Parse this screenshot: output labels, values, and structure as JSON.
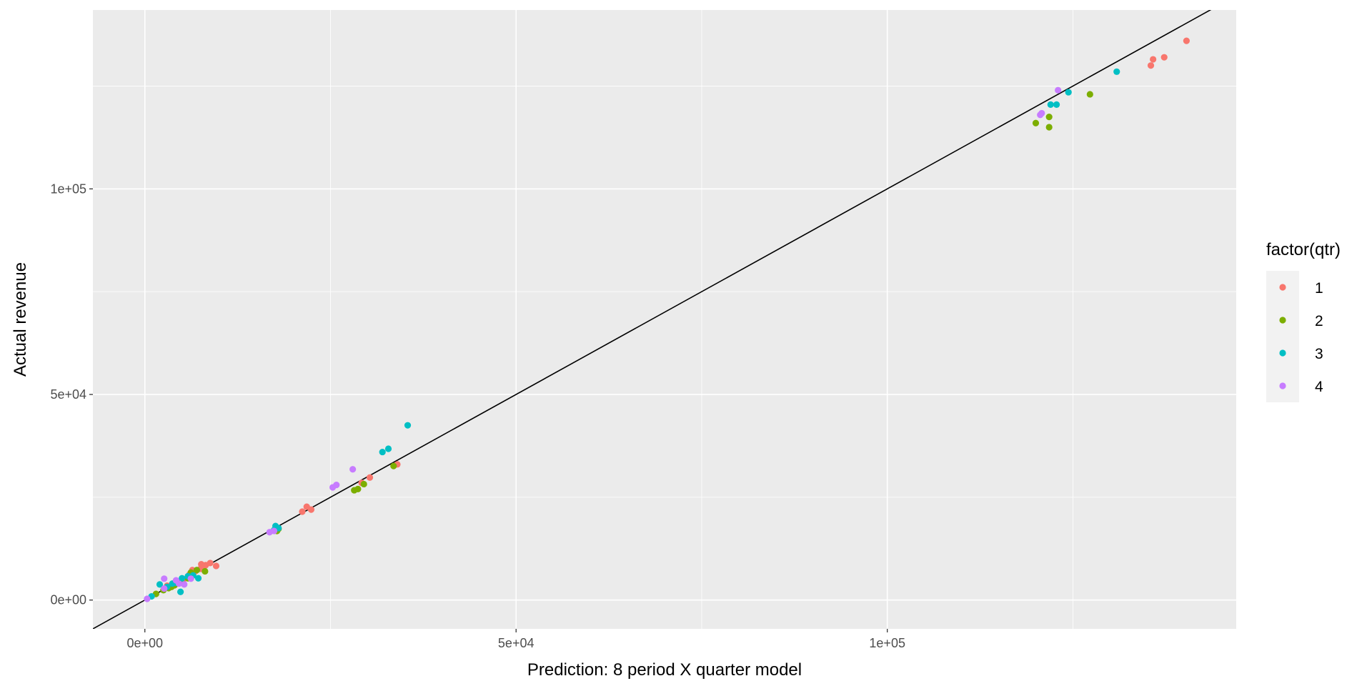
{
  "chart_data": {
    "type": "scatter",
    "xlabel": "Prediction: 8 period X quarter model",
    "ylabel": "Actual revenue",
    "xlim": [
      -7000,
      147000
    ],
    "ylim": [
      -7000,
      143500
    ],
    "x_ticks": [
      0,
      50000,
      100000
    ],
    "x_tick_labels": [
      "0e+00",
      "5e+04",
      "1e+05"
    ],
    "y_ticks": [
      0,
      50000,
      100000
    ],
    "y_tick_labels": [
      "0e+00",
      "5e+04",
      "1e+05"
    ],
    "grid": true,
    "reference_line": {
      "type": "identity",
      "slope": 1,
      "intercept": 0
    },
    "legend": {
      "title": "factor(qtr)",
      "position": "right"
    },
    "series": [
      {
        "name": "1",
        "color": "#F8766D",
        "points": [
          [
            3000,
            3500
          ],
          [
            4200,
            4200
          ],
          [
            5200,
            5000
          ],
          [
            6000,
            6200
          ],
          [
            6800,
            7000
          ],
          [
            7500,
            7600
          ],
          [
            8200,
            8500
          ],
          [
            8800,
            9000
          ],
          [
            9600,
            8300
          ],
          [
            6400,
            7300
          ],
          [
            7600,
            8700
          ],
          [
            8000,
            8200
          ],
          [
            21200,
            21500
          ],
          [
            21800,
            22700
          ],
          [
            22400,
            22000
          ],
          [
            29200,
            28500
          ],
          [
            30300,
            29800
          ],
          [
            34000,
            33000
          ],
          [
            135500,
            130000
          ],
          [
            135800,
            131500
          ],
          [
            137300,
            132000
          ],
          [
            140300,
            136000
          ]
        ]
      },
      {
        "name": "2",
        "color": "#7CAE00",
        "points": [
          [
            1500,
            1500
          ],
          [
            2500,
            2400
          ],
          [
            3200,
            2900
          ],
          [
            4000,
            3600
          ],
          [
            5000,
            4200
          ],
          [
            5800,
            5300
          ],
          [
            6200,
            6700
          ],
          [
            7000,
            7300
          ],
          [
            8100,
            7000
          ],
          [
            3600,
            3200
          ],
          [
            17800,
            16800
          ],
          [
            18000,
            17300
          ],
          [
            28200,
            26700
          ],
          [
            28700,
            27000
          ],
          [
            29500,
            28200
          ],
          [
            33500,
            32600
          ],
          [
            120000,
            116000
          ],
          [
            121800,
            117500
          ],
          [
            121800,
            115000
          ],
          [
            127300,
            123000
          ]
        ]
      },
      {
        "name": "3",
        "color": "#00BFC4",
        "points": [
          [
            900,
            900
          ],
          [
            2000,
            3800
          ],
          [
            3000,
            3200
          ],
          [
            4200,
            4200
          ],
          [
            5000,
            5300
          ],
          [
            5800,
            5800
          ],
          [
            6500,
            6000
          ],
          [
            7200,
            5300
          ],
          [
            4800,
            2000
          ],
          [
            3700,
            4000
          ],
          [
            17400,
            17000
          ],
          [
            17600,
            18000
          ],
          [
            18000,
            17500
          ],
          [
            32000,
            36000
          ],
          [
            32800,
            36800
          ],
          [
            35400,
            42500
          ],
          [
            122000,
            120500
          ],
          [
            122800,
            120500
          ],
          [
            124400,
            123500
          ],
          [
            130900,
            128500
          ]
        ]
      },
      {
        "name": "4",
        "color": "#C77CFF",
        "points": [
          [
            300,
            300
          ],
          [
            2600,
            5200
          ],
          [
            4200,
            4800
          ],
          [
            4600,
            4000
          ],
          [
            5300,
            3800
          ],
          [
            6200,
            5200
          ],
          [
            2600,
            2800
          ],
          [
            16800,
            16500
          ],
          [
            17400,
            16800
          ],
          [
            25300,
            27400
          ],
          [
            25800,
            28000
          ],
          [
            28000,
            31800
          ],
          [
            120600,
            118000
          ],
          [
            120800,
            118400
          ],
          [
            123000,
            124000
          ]
        ]
      }
    ]
  }
}
